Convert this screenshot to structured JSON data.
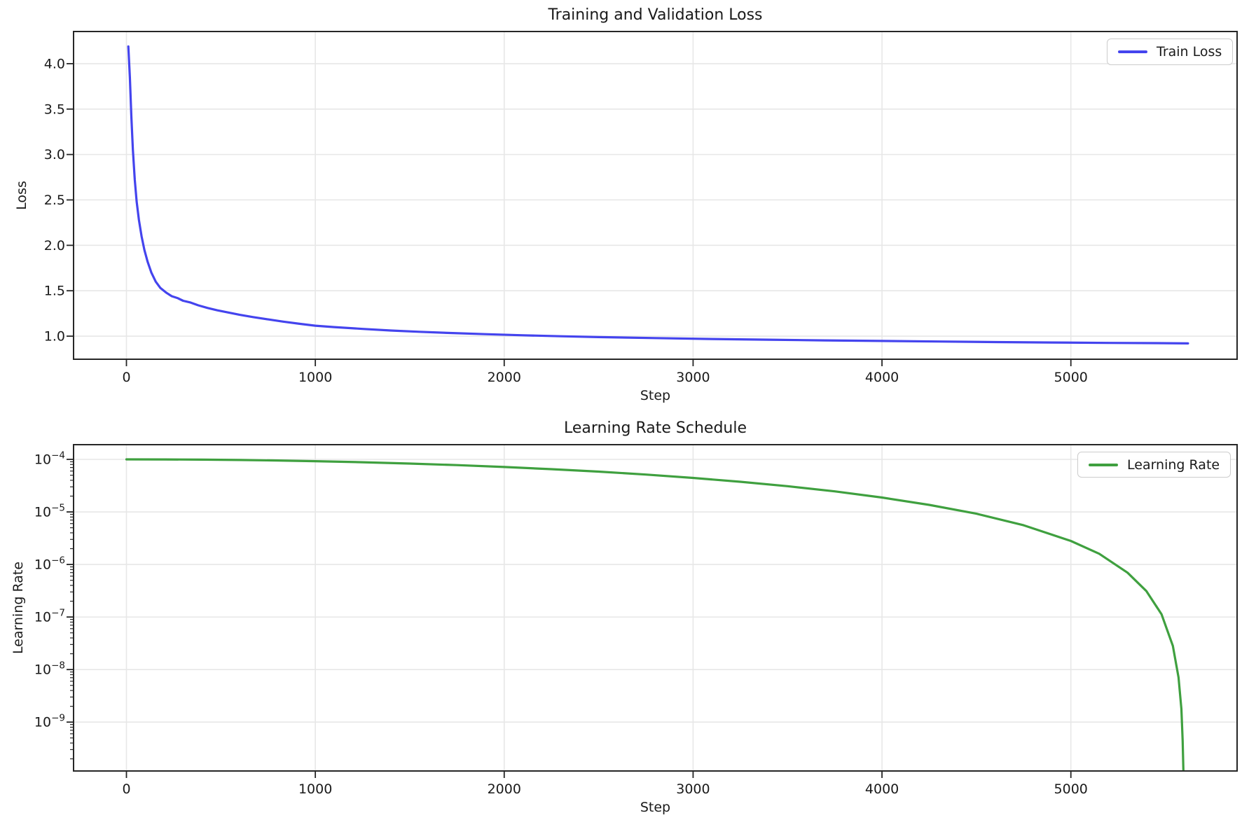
{
  "figure": {
    "background": "#ffffff",
    "text_color": "#1a1a1a",
    "grid_color": "#e7e7e7",
    "spine_color": "#262626"
  },
  "chart_data": [
    {
      "type": "line",
      "title": "Training and Validation Loss",
      "xlabel": "Step",
      "ylabel": "Loss",
      "xscale": "linear",
      "yscale": "linear",
      "xlim": [
        -280,
        5880
      ],
      "ylim": [
        0.746,
        4.354
      ],
      "grid": true,
      "xticks": [
        0,
        1000,
        2000,
        3000,
        4000,
        5000
      ],
      "yticks": [
        1.0,
        1.5,
        2.0,
        2.5,
        3.0,
        3.5,
        4.0
      ],
      "ytick_labels": [
        "1.0",
        "1.5",
        "2.0",
        "2.5",
        "3.0",
        "3.5",
        "4.0"
      ],
      "legend": {
        "position": "upper right",
        "entries": [
          {
            "label": "Train Loss",
            "color": "#4444ee"
          }
        ]
      },
      "series": [
        {
          "name": "Train Loss",
          "color": "#4444ee",
          "points": [
            [
              10,
              4.19
            ],
            [
              18,
              3.85
            ],
            [
              26,
              3.42
            ],
            [
              34,
              3.05
            ],
            [
              44,
              2.72
            ],
            [
              54,
              2.48
            ],
            [
              66,
              2.28
            ],
            [
              80,
              2.1
            ],
            [
              95,
              1.95
            ],
            [
              112,
              1.82
            ],
            [
              132,
              1.7
            ],
            [
              155,
              1.6
            ],
            [
              180,
              1.53
            ],
            [
              210,
              1.48
            ],
            [
              240,
              1.44
            ],
            [
              270,
              1.42
            ],
            [
              300,
              1.39
            ],
            [
              340,
              1.37
            ],
            [
              380,
              1.34
            ],
            [
              430,
              1.31
            ],
            [
              480,
              1.285
            ],
            [
              540,
              1.26
            ],
            [
              600,
              1.235
            ],
            [
              670,
              1.21
            ],
            [
              750,
              1.185
            ],
            [
              830,
              1.16
            ],
            [
              920,
              1.135
            ],
            [
              1000,
              1.115
            ],
            [
              1100,
              1.1
            ],
            [
              1250,
              1.08
            ],
            [
              1400,
              1.062
            ],
            [
              1550,
              1.048
            ],
            [
              1700,
              1.036
            ],
            [
              1900,
              1.022
            ],
            [
              2100,
              1.01
            ],
            [
              2300,
              0.999
            ],
            [
              2500,
              0.99
            ],
            [
              2800,
              0.979
            ],
            [
              3100,
              0.969
            ],
            [
              3400,
              0.961
            ],
            [
              3700,
              0.953
            ],
            [
              4000,
              0.947
            ],
            [
              4300,
              0.941
            ],
            [
              4600,
              0.935
            ],
            [
              4900,
              0.93
            ],
            [
              5200,
              0.926
            ],
            [
              5450,
              0.923
            ],
            [
              5620,
              0.92
            ]
          ]
        }
      ]
    },
    {
      "type": "line",
      "title": "Learning Rate Schedule",
      "xlabel": "Step",
      "ylabel": "Learning Rate",
      "xscale": "linear",
      "yscale": "log",
      "xlim": [
        -280,
        5880
      ],
      "ylim_log_exponents": [
        -9.93,
        -3.72
      ],
      "grid": true,
      "xticks": [
        0,
        1000,
        2000,
        3000,
        4000,
        5000
      ],
      "ytick_exponents": [
        -4,
        -5,
        -6,
        -7,
        -8,
        -9
      ],
      "legend": {
        "position": "upper right",
        "entries": [
          {
            "label": "Learning Rate",
            "color": "#3fa03f"
          }
        ]
      },
      "series": [
        {
          "name": "Learning Rate",
          "color": "#3fa03f",
          "points": [
            [
              0,
              0.0001
            ],
            [
              200,
              9.97e-05
            ],
            [
              400,
              9.88e-05
            ],
            [
              600,
              9.72e-05
            ],
            [
              800,
              9.51e-05
            ],
            [
              1000,
              9.23e-05
            ],
            [
              1250,
              8.82e-05
            ],
            [
              1500,
              8.33e-05
            ],
            [
              1750,
              7.78e-05
            ],
            [
              2000,
              7.17e-05
            ],
            [
              2250,
              6.52e-05
            ],
            [
              2500,
              5.84e-05
            ],
            [
              2750,
              5.14e-05
            ],
            [
              3000,
              4.44e-05
            ],
            [
              3250,
              3.75e-05
            ],
            [
              3500,
              3.09e-05
            ],
            [
              3750,
              2.46e-05
            ],
            [
              4000,
              1.88e-05
            ],
            [
              4250,
              1.36e-05
            ],
            [
              4500,
              9.24e-06
            ],
            [
              4750,
              5.57e-06
            ],
            [
              5000,
              2.8e-06
            ],
            [
              5150,
              1.6e-06
            ],
            [
              5300,
              6.98e-07
            ],
            [
              5400,
              3.11e-07
            ],
            [
              5480,
              1.13e-07
            ],
            [
              5540,
              2.83e-08
            ],
            [
              5570,
              7.08e-09
            ],
            [
              5585,
              1.77e-09
            ],
            [
              5592,
              4.4e-10
            ],
            [
              5596,
              1.1e-10
            ],
            [
              5598,
              2.8e-11
            ]
          ]
        }
      ]
    }
  ]
}
